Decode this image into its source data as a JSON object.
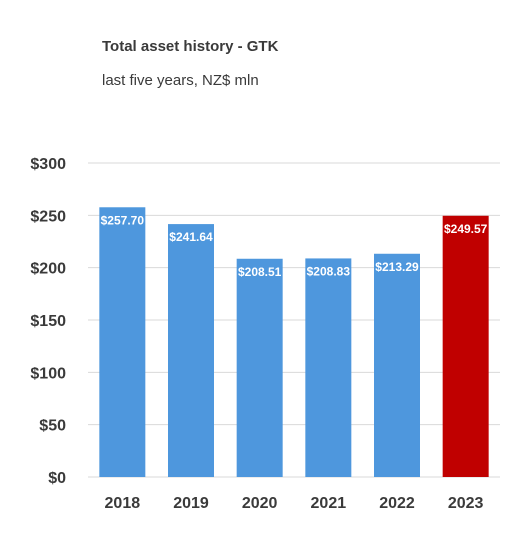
{
  "chart_data": {
    "type": "bar",
    "title": "Total asset history - GTK",
    "subtitle": "last five years, NZ$ mln",
    "xlabel": "",
    "ylabel": "",
    "categories": [
      "2018",
      "2019",
      "2020",
      "2021",
      "2022",
      "2023"
    ],
    "values": [
      257.7,
      241.64,
      208.51,
      208.83,
      213.29,
      249.57
    ],
    "data_labels": [
      "$257.70",
      "$241.64",
      "$208.51",
      "$208.83",
      "$213.29",
      "$249.57"
    ],
    "bar_colors": [
      "#4e97dd",
      "#4e97dd",
      "#4e97dd",
      "#4e97dd",
      "#4e97dd",
      "#c00000"
    ],
    "ylim": [
      0,
      300
    ],
    "yticks": [
      0,
      50,
      100,
      150,
      200,
      250,
      300
    ],
    "ytick_labels": [
      "$0",
      "$50",
      "$100",
      "$150",
      "$200",
      "$250",
      "$300"
    ],
    "grid": true,
    "legend": "none",
    "colors": {
      "bar": "#4e97dd",
      "highlight": "#c00000",
      "grid": "#d9d9d9",
      "text": "#3a3a3a",
      "data_label": "#ffffff"
    }
  }
}
